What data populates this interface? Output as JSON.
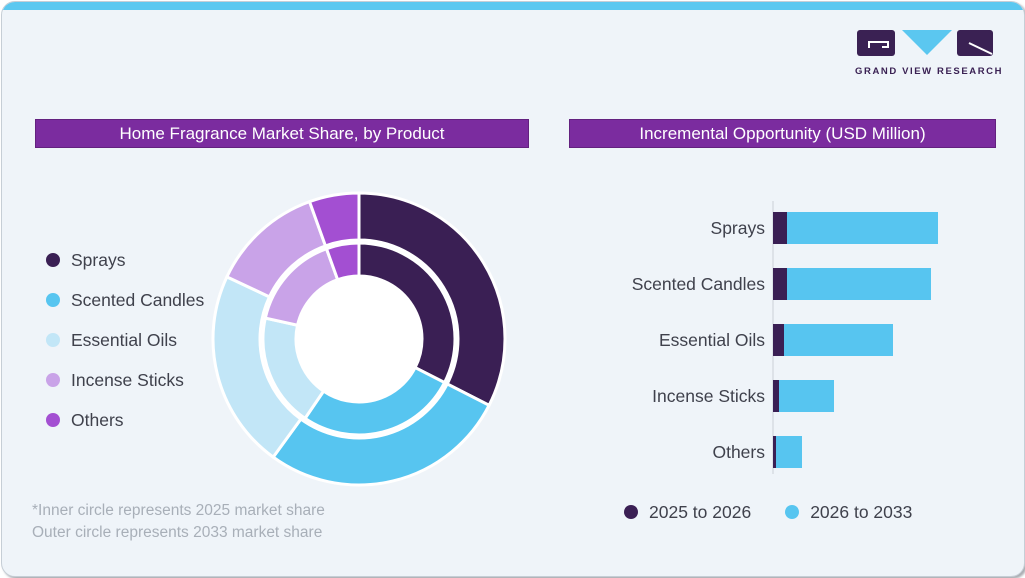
{
  "brand": {
    "logo_text": "GRAND VIEW RESEARCH",
    "logo_dark_color": "#3a2153",
    "logo_blue_color": "#5bc7f0"
  },
  "frame": {
    "top_strip_color": "#5bc8f0",
    "card_background": "#eff4f9",
    "banner_color": "#7b2c9f"
  },
  "left_panel": {
    "title": "Home Fragrance Market Share, by Product",
    "legend": [
      {
        "label": "Sprays",
        "color": "#3a1f54"
      },
      {
        "label": "Scented Candles",
        "color": "#57c5f0"
      },
      {
        "label": "Essential Oils",
        "color": "#c2e6f7"
      },
      {
        "label": "Incense Sticks",
        "color": "#c9a3e8"
      },
      {
        "label": "Others",
        "color": "#a34fd2"
      }
    ],
    "footnote_line1": "*Inner circle represents 2025 market share",
    "footnote_line2": "Outer circle represents 2033 market share"
  },
  "right_panel": {
    "title": "Incremental Opportunity (USD Million)",
    "legend": [
      {
        "label": "2025 to 2026",
        "color": "#3a1f54"
      },
      {
        "label": "2026 to 2033",
        "color": "#57c5f0"
      }
    ]
  },
  "chart_data": [
    {
      "type": "pie",
      "subtype": "double_ring_donut",
      "title": "Home Fragrance Market Share, by Product",
      "categories": [
        "Sprays",
        "Scented Candles",
        "Essential Oils",
        "Incense Sticks",
        "Others"
      ],
      "colors": [
        "#3a1f54",
        "#57c5f0",
        "#c2e6f7",
        "#c9a3e8",
        "#a34fd2"
      ],
      "series": [
        {
          "name": "2025 market share (inner circle)",
          "values": [
            32.5,
            27.0,
            19.0,
            16.0,
            5.5
          ]
        },
        {
          "name": "2033 market share (outer circle)",
          "values": [
            32.5,
            27.5,
            22.0,
            12.5,
            5.5
          ]
        }
      ],
      "units": "percent of market share, estimated from arc angles (no numeric labels shown)",
      "start_angle_deg": 0,
      "direction": "clockwise",
      "slice_gap_color": "#ffffff",
      "hole_color": "#ffffff"
    },
    {
      "type": "bar",
      "orientation": "horizontal",
      "stacked": true,
      "title": "Incremental Opportunity (USD Million)",
      "categories": [
        "Sprays",
        "Scented Candles",
        "Essential Oils",
        "Incense Sticks",
        "Others"
      ],
      "series": [
        {
          "name": "2025 to 2026",
          "color": "#3a1f54",
          "values": [
            14,
            14,
            11,
            6,
            3
          ]
        },
        {
          "name": "2026 to 2033",
          "color": "#57c5f0",
          "values": [
            151,
            144,
            109,
            55,
            26
          ]
        }
      ],
      "value_axis": "unlabeled; values are relative bar lengths (px), no numeric scale shown on chart",
      "legend_position": "bottom",
      "grid": false
    }
  ]
}
